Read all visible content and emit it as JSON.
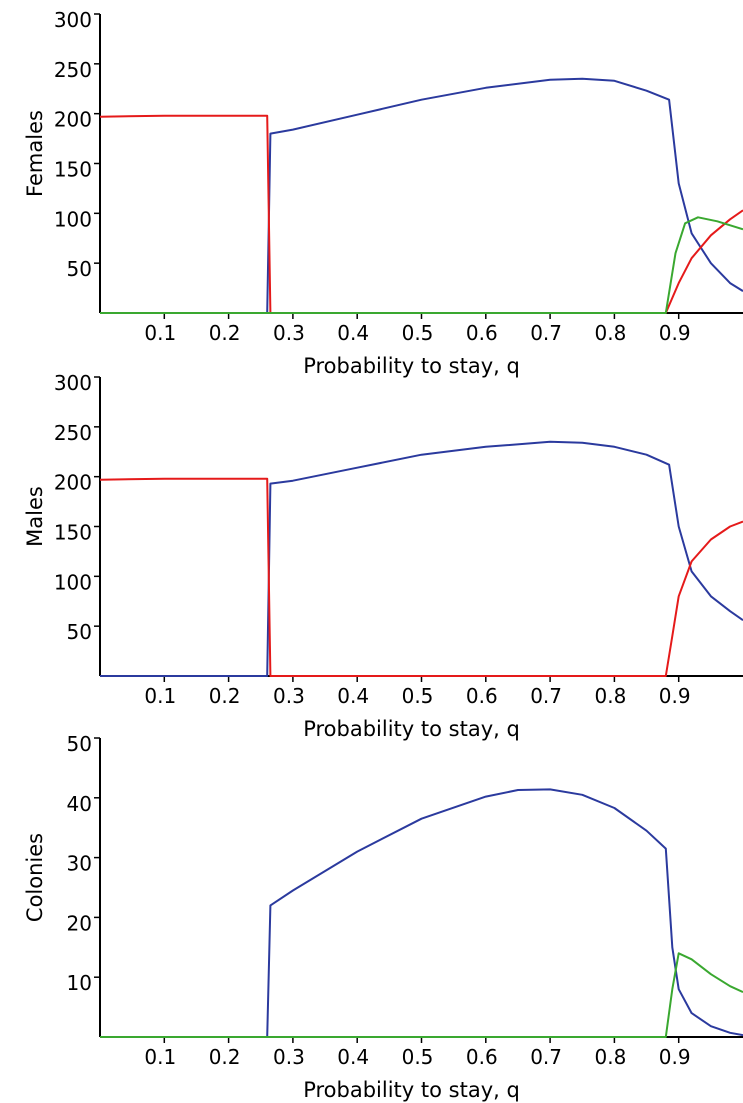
{
  "chart_data": [
    {
      "type": "line",
      "xlabel": "Probability to stay, q",
      "ylabel": "Females",
      "xlim": [
        0,
        1
      ],
      "ylim": [
        0,
        300
      ],
      "xticks": [
        0.1,
        0.2,
        0.3,
        0.4,
        0.5,
        0.6,
        0.7,
        0.8,
        0.9
      ],
      "xtick_labels": [
        "0.1",
        "0.2",
        "0.3",
        "0.4",
        "0.5",
        "0.6",
        "0.7",
        "0.8",
        "0.9"
      ],
      "yticks": [
        50,
        100,
        150,
        200,
        250,
        300
      ],
      "ytick_labels": [
        "50",
        "100",
        "150",
        "200",
        "250",
        "300"
      ],
      "grid": false,
      "series": [
        {
          "color": "#2b3a9e",
          "points": [
            [
              0.0,
              0
            ],
            [
              0.26,
              0
            ],
            [
              0.265,
              180
            ],
            [
              0.3,
              184
            ],
            [
              0.4,
              199
            ],
            [
              0.5,
              214
            ],
            [
              0.6,
              226
            ],
            [
              0.7,
              234
            ],
            [
              0.75,
              235
            ],
            [
              0.8,
              233
            ],
            [
              0.85,
              223
            ],
            [
              0.885,
              214
            ],
            [
              0.9,
              130
            ],
            [
              0.92,
              80
            ],
            [
              0.95,
              50
            ],
            [
              0.98,
              30
            ],
            [
              1.0,
              22
            ]
          ]
        },
        {
          "color": "#e51a1a",
          "points": [
            [
              0.0,
              197
            ],
            [
              0.1,
              198
            ],
            [
              0.26,
              198
            ],
            [
              0.265,
              0
            ],
            [
              0.88,
              0
            ],
            [
              0.9,
              30
            ],
            [
              0.92,
              55
            ],
            [
              0.95,
              78
            ],
            [
              0.98,
              94
            ],
            [
              1.0,
              103
            ]
          ]
        },
        {
          "color": "#3aa830",
          "points": [
            [
              0.0,
              0
            ],
            [
              0.88,
              0
            ],
            [
              0.895,
              60
            ],
            [
              0.91,
              90
            ],
            [
              0.93,
              96
            ],
            [
              0.96,
              92
            ],
            [
              1.0,
              84
            ]
          ]
        }
      ]
    },
    {
      "type": "line",
      "xlabel": "Probability to stay, q",
      "ylabel": "Males",
      "xlim": [
        0,
        1
      ],
      "ylim": [
        0,
        300
      ],
      "xticks": [
        0.1,
        0.2,
        0.3,
        0.4,
        0.5,
        0.6,
        0.7,
        0.8,
        0.9
      ],
      "xtick_labels": [
        "0.1",
        "0.2",
        "0.3",
        "0.4",
        "0.5",
        "0.6",
        "0.7",
        "0.8",
        "0.9"
      ],
      "yticks": [
        50,
        100,
        150,
        200,
        250,
        300
      ],
      "ytick_labels": [
        "50",
        "100",
        "150",
        "200",
        "250",
        "300"
      ],
      "grid": false,
      "series": [
        {
          "color": "#2b3a9e",
          "points": [
            [
              0.0,
              0
            ],
            [
              0.26,
              0
            ],
            [
              0.265,
              193
            ],
            [
              0.3,
              196
            ],
            [
              0.4,
              209
            ],
            [
              0.5,
              222
            ],
            [
              0.6,
              230
            ],
            [
              0.7,
              235
            ],
            [
              0.75,
              234
            ],
            [
              0.8,
              230
            ],
            [
              0.85,
              222
            ],
            [
              0.885,
              212
            ],
            [
              0.9,
              150
            ],
            [
              0.92,
              105
            ],
            [
              0.95,
              80
            ],
            [
              0.98,
              65
            ],
            [
              1.0,
              56
            ]
          ]
        },
        {
          "color": "#e51a1a",
          "points": [
            [
              0.0,
              197
            ],
            [
              0.1,
              198
            ],
            [
              0.26,
              198
            ],
            [
              0.265,
              0
            ],
            [
              0.88,
              0
            ],
            [
              0.89,
              40
            ],
            [
              0.9,
              80
            ],
            [
              0.92,
              115
            ],
            [
              0.95,
              137
            ],
            [
              0.98,
              150
            ],
            [
              1.0,
              155
            ]
          ]
        }
      ]
    },
    {
      "type": "line",
      "xlabel": "Probability to stay, q",
      "ylabel": "Colonies",
      "xlim": [
        0,
        1
      ],
      "ylim": [
        0,
        50
      ],
      "xticks": [
        0.1,
        0.2,
        0.3,
        0.4,
        0.5,
        0.6,
        0.7,
        0.8,
        0.9
      ],
      "xtick_labels": [
        "0.1",
        "0.2",
        "0.3",
        "0.4",
        "0.5",
        "0.6",
        "0.7",
        "0.8",
        "0.9"
      ],
      "yticks": [
        10,
        20,
        30,
        40,
        50
      ],
      "ytick_labels": [
        "10",
        "20",
        "30",
        "40",
        "50"
      ],
      "grid": false,
      "series": [
        {
          "color": "#2b3a9e",
          "points": [
            [
              0.0,
              0
            ],
            [
              0.26,
              0
            ],
            [
              0.265,
              22
            ],
            [
              0.3,
              24.5
            ],
            [
              0.4,
              31
            ],
            [
              0.5,
              36.5
            ],
            [
              0.6,
              40.2
            ],
            [
              0.65,
              41.3
            ],
            [
              0.7,
              41.4
            ],
            [
              0.75,
              40.5
            ],
            [
              0.8,
              38.3
            ],
            [
              0.85,
              34.5
            ],
            [
              0.88,
              31.5
            ],
            [
              0.89,
              15
            ],
            [
              0.9,
              8
            ],
            [
              0.92,
              4
            ],
            [
              0.95,
              1.8
            ],
            [
              0.98,
              0.7
            ],
            [
              1.0,
              0.3
            ]
          ]
        },
        {
          "color": "#3aa830",
          "points": [
            [
              0.0,
              0
            ],
            [
              0.88,
              0
            ],
            [
              0.89,
              8
            ],
            [
              0.9,
              14
            ],
            [
              0.92,
              13
            ],
            [
              0.95,
              10.5
            ],
            [
              0.98,
              8.5
            ],
            [
              1.0,
              7.5
            ]
          ]
        }
      ]
    }
  ]
}
